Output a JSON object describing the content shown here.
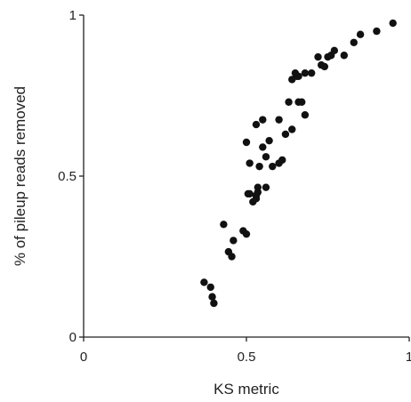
{
  "chart_data": {
    "type": "scatter",
    "title": "",
    "xlabel": "KS metric",
    "ylabel": "% of pileup reads removed",
    "xlim": [
      0,
      1
    ],
    "ylim": [
      0,
      1
    ],
    "xticks": [
      0,
      0.5,
      1
    ],
    "yticks": [
      0,
      0.5,
      1
    ],
    "xtick_labels": [
      "0",
      "0.5",
      "1"
    ],
    "ytick_labels": [
      "0",
      "0.5",
      "1"
    ],
    "grid": false,
    "legend": "none",
    "marker_color": "#111111",
    "series": [
      {
        "x": [
          0.37,
          0.39,
          0.395,
          0.4,
          0.43,
          0.445,
          0.455,
          0.46,
          0.49,
          0.5,
          0.505,
          0.5,
          0.51,
          0.52,
          0.53,
          0.535,
          0.53,
          0.54,
          0.535,
          0.55,
          0.56,
          0.57,
          0.55,
          0.53,
          0.56,
          0.58,
          0.6,
          0.61,
          0.6,
          0.62,
          0.63,
          0.64,
          0.65,
          0.66,
          0.68,
          0.64,
          0.66,
          0.67,
          0.7,
          0.68,
          0.72,
          0.73,
          0.75,
          0.74,
          0.76,
          0.77,
          0.8,
          0.83,
          0.85,
          0.9,
          0.95,
          0.51,
          0.655
        ],
        "y": [
          0.17,
          0.155,
          0.125,
          0.105,
          0.35,
          0.265,
          0.25,
          0.3,
          0.33,
          0.32,
          0.445,
          0.605,
          0.54,
          0.42,
          0.43,
          0.465,
          0.66,
          0.53,
          0.45,
          0.675,
          0.56,
          0.61,
          0.59,
          0.44,
          0.465,
          0.53,
          0.675,
          0.55,
          0.54,
          0.63,
          0.73,
          0.645,
          0.82,
          0.81,
          0.69,
          0.8,
          0.73,
          0.73,
          0.82,
          0.82,
          0.87,
          0.845,
          0.87,
          0.84,
          0.875,
          0.89,
          0.875,
          0.915,
          0.94,
          0.95,
          0.975,
          0.445,
          0.81
        ]
      }
    ]
  }
}
